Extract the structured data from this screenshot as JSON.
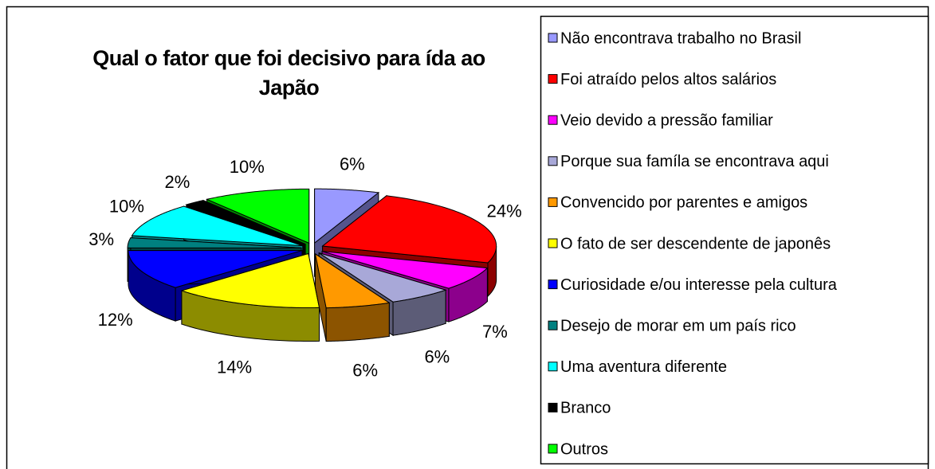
{
  "chart_data": {
    "type": "pie",
    "title": "Qual o fator que foi decisivo para ída ao Japão",
    "categories": [
      "Não encontrava trabalho no Brasil",
      "Foi atraído pelos altos salários",
      "Veio devido a pressão familiar",
      "Porque sua famíla se encontrava aqui",
      "Convencido por parentes e amigos",
      "O fato de ser descendente  de japonês",
      "Curiosidade e/ou interesse pela cultura",
      "Desejo de morar em um país rico",
      "Uma aventura diferente",
      "Branco",
      "Outros"
    ],
    "values": [
      6,
      24,
      7,
      6,
      6,
      14,
      12,
      3,
      10,
      2,
      10
    ],
    "value_labels": [
      "6%",
      "24%",
      "7%",
      "6%",
      "6%",
      "14%",
      "12%",
      "3%",
      "10%",
      "2%",
      "10%"
    ],
    "colors": [
      "#9999ff",
      "#ff0000",
      "#ff00ff",
      "#a8a8d8",
      "#ff9900",
      "#ffff00",
      "#0000ff",
      "#008080",
      "#00ffff",
      "#000000",
      "#00ff00"
    ],
    "legend": "right"
  }
}
